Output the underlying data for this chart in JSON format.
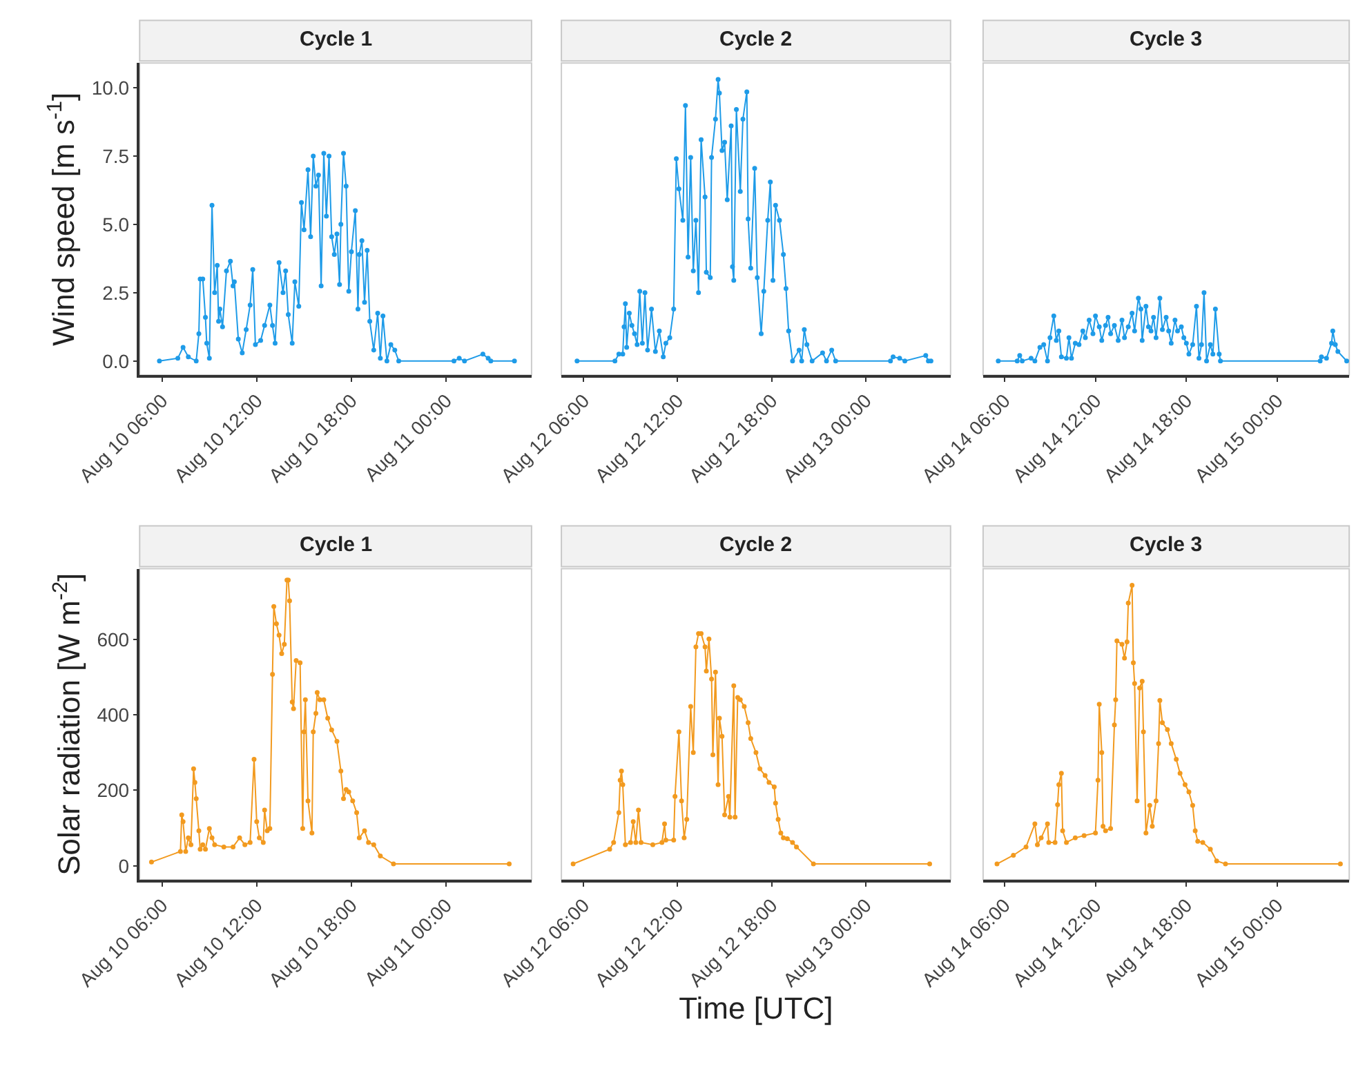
{
  "chart_data": [
    {
      "type": "line",
      "title": "Cycle 1",
      "ylabel": "Wind speed [m s$^{-1}$]",
      "color": "#1e9be8",
      "marker": "circle",
      "x": [
        "--08-10T05:50",
        "--08-10T07:00",
        "--08-10T07:20",
        "--08-10T07:40",
        "--08-10T08:10",
        "--08-10T08:20",
        "--08-10T08:25",
        "--08-10T08:35",
        "--08-10T08:45",
        "--08-10T08:50",
        "--08-10T09:00",
        "--08-10T09:10",
        "--08-10T09:20",
        "--08-10T09:30",
        "--08-10T09:35",
        "--08-10T09:40",
        "--08-10T09:50",
        "--08-10T10:05",
        "--08-10T10:20",
        "--08-10T10:30",
        "--08-10T10:35",
        "--08-10T10:50",
        "--08-10T11:05",
        "--08-10T11:20",
        "--08-10T11:35",
        "--08-10T11:45",
        "--08-10T11:55",
        "--08-10T12:15",
        "--08-10T12:30",
        "--08-10T12:50",
        "--08-10T13:00",
        "--08-10T13:10",
        "--08-10T13:25",
        "--08-10T13:40",
        "--08-10T13:50",
        "--08-10T14:00",
        "--08-10T14:15",
        "--08-10T14:25",
        "--08-10T14:40",
        "--08-10T14:50",
        "--08-10T15:00",
        "--08-10T15:15",
        "--08-10T15:25",
        "--08-10T15:35",
        "--08-10T15:45",
        "--08-10T15:55",
        "--08-10T16:05",
        "--08-10T16:15",
        "--08-10T16:25",
        "--08-10T16:35",
        "--08-10T16:45",
        "--08-10T16:55",
        "--08-10T17:05",
        "--08-10T17:15",
        "--08-10T17:20",
        "--08-10T17:30",
        "--08-10T17:40",
        "--08-10T17:50",
        "--08-10T18:00",
        "--08-10T18:15",
        "--08-10T18:25",
        "--08-10T18:30",
        "--08-10T18:40",
        "--08-10T18:50",
        "--08-10T19:00",
        "--08-10T19:10",
        "--08-10T19:25",
        "--08-10T19:40",
        "--08-10T19:50",
        "--08-10T20:00",
        "--08-10T20:15",
        "--08-10T20:30",
        "--08-10T20:45",
        "--08-10T21:00",
        "--08-11T00:30",
        "--08-11T00:50",
        "--08-11T01:10",
        "--08-11T02:20",
        "--08-11T02:40",
        "--08-11T02:50",
        "--08-11T04:20"
      ],
      "values": [
        0,
        0.1,
        0.5,
        0.15,
        0,
        1.0,
        3.0,
        3.0,
        1.6,
        0.65,
        0.1,
        5.7,
        2.5,
        3.5,
        1.45,
        1.9,
        1.25,
        3.3,
        3.65,
        2.75,
        2.9,
        0.8,
        0.3,
        1.15,
        2.05,
        3.35,
        0.6,
        0.75,
        1.3,
        2.05,
        1.3,
        0.65,
        3.6,
        2.5,
        3.3,
        1.7,
        0.65,
        2.9,
        2.0,
        5.8,
        4.8,
        7.0,
        4.55,
        7.5,
        6.4,
        6.8,
        2.75,
        7.6,
        5.3,
        7.5,
        4.55,
        3.9,
        4.65,
        2.8,
        5.0,
        7.6,
        6.4,
        2.55,
        4.0,
        5.5,
        1.9,
        3.9,
        4.4,
        2.15,
        4.05,
        1.45,
        0.4,
        1.75,
        0.1,
        1.65,
        0,
        0.6,
        0.4,
        0,
        0,
        0.1,
        0,
        0.25,
        0.1,
        0,
        0
      ],
      "xlim": [
        "--08-10T04:35",
        "--08-11T05:25"
      ],
      "xticks": [
        {
          "value": "--08-10T06:00",
          "label": "Aug 10 06:00"
        },
        {
          "value": "--08-10T12:00",
          "label": "Aug 10 12:00"
        },
        {
          "value": "--08-10T18:00",
          "label": "Aug 10 18:00"
        },
        {
          "value": "--08-11T00:00",
          "label": "Aug 11 00:00"
        }
      ],
      "ylim": [
        -0.52,
        10.9
      ],
      "yticks": [
        {
          "value": 0,
          "label": "0.0"
        },
        {
          "value": 2.5,
          "label": "2.5"
        },
        {
          "value": 5,
          "label": "5.0"
        },
        {
          "value": 7.5,
          "label": "7.5"
        },
        {
          "value": 10,
          "label": "10.0"
        }
      ]
    },
    {
      "type": "line",
      "title": "Cycle 2",
      "color": "#1e9be8",
      "marker": "circle",
      "tick_labels": "x",
      "x": [
        "--08-12T05:35",
        "--08-12T08:00",
        "--08-12T08:15",
        "--08-12T08:30",
        "--08-12T08:35",
        "--08-12T08:40",
        "--08-12T08:45",
        "--08-12T08:55",
        "--08-12T09:05",
        "--08-12T09:15",
        "--08-12T09:25",
        "--08-12T09:35",
        "--08-12T09:45",
        "--08-12T09:55",
        "--08-12T10:05",
        "--08-12T10:20",
        "--08-12T10:35",
        "--08-12T10:50",
        "--08-12T11:05",
        "--08-12T11:15",
        "--08-12T11:30",
        "--08-12T11:45",
        "--08-12T11:55",
        "--08-12T12:05",
        "--08-12T12:20",
        "--08-12T12:30",
        "--08-12T12:40",
        "--08-12T12:50",
        "--08-12T13:00",
        "--08-12T13:10",
        "--08-12T13:20",
        "--08-12T13:30",
        "--08-12T13:45",
        "--08-12T13:50",
        "--08-12T14:05",
        "--08-12T14:10",
        "--08-12T14:25",
        "--08-12T14:35",
        "--08-12T14:40",
        "--08-12T14:50",
        "--08-12T15:00",
        "--08-12T15:10",
        "--08-12T15:25",
        "--08-12T15:30",
        "--08-12T15:35",
        "--08-12T15:45",
        "--08-12T16:00",
        "--08-12T16:10",
        "--08-12T16:25",
        "--08-12T16:30",
        "--08-12T16:40",
        "--08-12T16:55",
        "--08-12T17:05",
        "--08-12T17:20",
        "--08-12T17:30",
        "--08-12T17:45",
        "--08-12T17:55",
        "--08-12T18:05",
        "--08-12T18:15",
        "--08-12T18:30",
        "--08-12T18:45",
        "--08-12T18:55",
        "--08-12T19:05",
        "--08-12T19:20",
        "--08-12T19:45",
        "--08-12T19:55",
        "--08-12T20:05",
        "--08-12T20:15",
        "--08-12T20:35",
        "--08-12T21:15",
        "--08-12T21:30",
        "--08-12T21:50",
        "--08-12T22:05",
        "--08-13T01:35",
        "--08-13T01:45",
        "--08-13T02:10",
        "--08-13T02:30",
        "--08-13T03:50",
        "--08-13T04:00",
        "--08-13T04:10"
      ],
      "values": [
        0,
        0,
        0.25,
        0.25,
        1.25,
        2.1,
        0.5,
        1.75,
        1.3,
        1.0,
        0.6,
        2.55,
        0.65,
        2.5,
        0.4,
        1.9,
        0.35,
        1.1,
        0.15,
        0.65,
        0.85,
        1.9,
        7.4,
        6.3,
        5.15,
        9.35,
        3.8,
        7.45,
        3.3,
        5.15,
        2.5,
        8.1,
        6.0,
        3.25,
        3.05,
        7.45,
        8.85,
        10.3,
        9.8,
        7.7,
        8.0,
        5.9,
        8.6,
        3.45,
        2.95,
        9.2,
        6.2,
        8.85,
        9.85,
        5.2,
        3.4,
        7.05,
        3.05,
        1.0,
        2.55,
        5.15,
        6.55,
        2.95,
        5.7,
        5.15,
        3.9,
        2.65,
        1.1,
        0,
        0.4,
        0,
        1.15,
        0.6,
        0,
        0.3,
        0,
        0.4,
        0,
        0,
        0.15,
        0.1,
        0,
        0.2,
        0,
        0
      ],
      "xlim": [
        "--08-12T04:35",
        "--08-13T05:25"
      ],
      "xticks": [
        {
          "value": "--08-12T06:00",
          "label": "Aug 12 06:00"
        },
        {
          "value": "--08-12T12:00",
          "label": "Aug 12 12:00"
        },
        {
          "value": "--08-12T18:00",
          "label": "Aug 12 18:00"
        },
        {
          "value": "--08-13T00:00",
          "label": "Aug 13 00:00"
        }
      ],
      "ylim": [
        -0.52,
        10.9
      ]
    },
    {
      "type": "line",
      "title": "Cycle 3",
      "color": "#1e9be8",
      "marker": "circle",
      "tick_labels": "x",
      "x": [
        "--08-14T05:35",
        "--08-14T06:50",
        "--08-14T07:00",
        "--08-14T07:10",
        "--08-14T07:45",
        "--08-14T08:00",
        "--08-14T08:20",
        "--08-14T08:35",
        "--08-14T08:50",
        "--08-14T09:00",
        "--08-14T09:15",
        "--08-14T09:25",
        "--08-14T09:35",
        "--08-14T09:45",
        "--08-14T10:05",
        "--08-14T10:15",
        "--08-14T10:25",
        "--08-14T10:40",
        "--08-14T10:55",
        "--08-14T11:10",
        "--08-14T11:20",
        "--08-14T11:35",
        "--08-14T11:50",
        "--08-14T12:00",
        "--08-14T12:15",
        "--08-14T12:25",
        "--08-14T12:40",
        "--08-14T12:50",
        "--08-14T13:00",
        "--08-14T13:15",
        "--08-14T13:30",
        "--08-14T13:45",
        "--08-14T13:55",
        "--08-14T14:10",
        "--08-14T14:25",
        "--08-14T14:35",
        "--08-14T14:50",
        "--08-14T15:00",
        "--08-14T15:05",
        "--08-14T15:20",
        "--08-14T15:30",
        "--08-14T15:40",
        "--08-14T15:50",
        "--08-14T16:00",
        "--08-14T16:15",
        "--08-14T16:25",
        "--08-14T16:40",
        "--08-14T16:50",
        "--08-14T17:00",
        "--08-14T17:15",
        "--08-14T17:25",
        "--08-14T17:40",
        "--08-14T17:50",
        "--08-14T18:00",
        "--08-14T18:10",
        "--08-14T18:25",
        "--08-14T18:40",
        "--08-14T18:50",
        "--08-14T19:00",
        "--08-14T19:10",
        "--08-14T19:20",
        "--08-14T19:35",
        "--08-14T19:45",
        "--08-14T19:55",
        "--08-14T20:10",
        "--08-14T20:15",
        "--08-15T02:50",
        "--08-15T02:55",
        "--08-15T03:15",
        "--08-15T03:35",
        "--08-15T03:40",
        "--08-15T03:50",
        "--08-15T04:00",
        "--08-15T04:35"
      ],
      "values": [
        0,
        0,
        0.2,
        0,
        0.1,
        0,
        0.5,
        0.6,
        0,
        0.85,
        1.65,
        0.75,
        1.1,
        0.15,
        0.1,
        0.85,
        0.1,
        0.65,
        0.6,
        1.1,
        0.85,
        1.5,
        1.0,
        1.65,
        1.25,
        0.75,
        1.3,
        1.6,
        1.0,
        1.3,
        0.75,
        1.5,
        0.85,
        1.25,
        1.75,
        1.1,
        2.3,
        1.9,
        0.75,
        2.0,
        1.25,
        1.1,
        1.6,
        0.85,
        2.3,
        1.15,
        1.6,
        1.1,
        0.65,
        1.5,
        1.1,
        1.25,
        0.85,
        0.65,
        0.25,
        0.6,
        2.0,
        0.1,
        0.6,
        2.5,
        0,
        0.6,
        0.25,
        1.9,
        0.25,
        0,
        0,
        0.15,
        0.1,
        0.65,
        1.1,
        0.6,
        0.35,
        0
      ],
      "xlim": [
        "--08-14T04:35",
        "--08-15T04:45"
      ],
      "xticks": [
        {
          "value": "--08-14T06:00",
          "label": "Aug 14 06:00"
        },
        {
          "value": "--08-14T12:00",
          "label": "Aug 14 12:00"
        },
        {
          "value": "--08-14T18:00",
          "label": "Aug 14 18:00"
        },
        {
          "value": "--08-15T00:00",
          "label": "Aug 15 00:00"
        }
      ],
      "ylim": [
        -0.52,
        10.9
      ]
    },
    {
      "type": "line",
      "title": "Cycle 1",
      "ylabel": "Solar radiation [W m$^{-2}$]",
      "color": "#f29a1f",
      "marker": "circle",
      "x": [
        "--08-10T05:20",
        "--08-10T07:10",
        "--08-10T07:15",
        "--08-10T07:20",
        "--08-10T07:30",
        "--08-10T07:40",
        "--08-10T07:50",
        "--08-10T08:00",
        "--08-10T08:05",
        "--08-10T08:10",
        "--08-10T08:20",
        "--08-10T08:25",
        "--08-10T08:35",
        "--08-10T08:45",
        "--08-10T09:00",
        "--08-10T09:10",
        "--08-10T09:20",
        "--08-10T09:55",
        "--08-10T10:30",
        "--08-10T10:55",
        "--08-10T11:15",
        "--08-10T11:35",
        "--08-10T11:50",
        "--08-10T12:00",
        "--08-10T12:10",
        "--08-10T12:25",
        "--08-10T12:30",
        "--08-10T12:40",
        "--08-10T12:50",
        "--08-10T13:00",
        "--08-10T13:05",
        "--08-10T13:15",
        "--08-10T13:25",
        "--08-10T13:35",
        "--08-10T13:45",
        "--08-10T13:55",
        "--08-10T14:00",
        "--08-10T14:05",
        "--08-10T14:15",
        "--08-10T14:20",
        "--08-10T14:30",
        "--08-10T14:45",
        "--08-10T14:55",
        "--08-10T15:00",
        "--08-10T15:05",
        "--08-10T15:15",
        "--08-10T15:30",
        "--08-10T15:35",
        "--08-10T15:45",
        "--08-10T15:50",
        "--08-10T16:00",
        "--08-10T16:15",
        "--08-10T16:30",
        "--08-10T16:45",
        "--08-10T17:05",
        "--08-10T17:20",
        "--08-10T17:30",
        "--08-10T17:40",
        "--08-10T17:50",
        "--08-10T18:05",
        "--08-10T18:20",
        "--08-10T18:30",
        "--08-10T18:50",
        "--08-10T19:05",
        "--08-10T19:25",
        "--08-10T19:50",
        "--08-10T20:40",
        "--08-11T04:00"
      ],
      "values": [
        10,
        38,
        135,
        117,
        38,
        74,
        56,
        257,
        221,
        178,
        93,
        44,
        56,
        44,
        99,
        74,
        56,
        50,
        50,
        74,
        56,
        62,
        282,
        117,
        74,
        62,
        148,
        93,
        99,
        507,
        687,
        641,
        611,
        562,
        587,
        757,
        757,
        702,
        434,
        416,
        544,
        538,
        99,
        355,
        440,
        172,
        87,
        355,
        404,
        459,
        440,
        440,
        391,
        360,
        330,
        251,
        178,
        202,
        196,
        172,
        141,
        74,
        93,
        62,
        56,
        26,
        5,
        5
      ],
      "xlim": [
        "--08-10T04:35",
        "--08-11T05:25"
      ],
      "xticks": [
        {
          "value": "--08-10T06:00",
          "label": "Aug 10 06:00"
        },
        {
          "value": "--08-10T12:00",
          "label": "Aug 10 12:00"
        },
        {
          "value": "--08-10T18:00",
          "label": "Aug 10 18:00"
        },
        {
          "value": "--08-11T00:00",
          "label": "Aug 11 00:00"
        }
      ],
      "ylim": [
        -37,
        787
      ],
      "yticks": [
        0,
        200,
        400,
        600
      ]
    },
    {
      "type": "line",
      "title": "Cycle 2",
      "xlabel": "Time [UTC]",
      "color": "#f29a1f",
      "marker": "circle",
      "tick_labels": "x",
      "x": [
        "--08-12T05:20",
        "--08-12T07:40",
        "--08-12T07:55",
        "--08-12T08:15",
        "--08-12T08:20",
        "--08-12T08:25",
        "--08-12T08:30",
        "--08-12T08:40",
        "--08-12T09:00",
        "--08-12T09:10",
        "--08-12T09:20",
        "--08-12T09:30",
        "--08-12T09:40",
        "--08-12T10:25",
        "--08-12T11:00",
        "--08-12T11:10",
        "--08-12T11:15",
        "--08-12T11:45",
        "--08-12T11:50",
        "--08-12T12:05",
        "--08-12T12:15",
        "--08-12T12:25",
        "--08-12T12:35",
        "--08-12T12:50",
        "--08-12T13:00",
        "--08-12T13:10",
        "--08-12T13:20",
        "--08-12T13:30",
        "--08-12T13:45",
        "--08-12T13:50",
        "--08-12T14:00",
        "--08-12T14:10",
        "--08-12T14:15",
        "--08-12T14:25",
        "--08-12T14:35",
        "--08-12T14:40",
        "--08-12T14:50",
        "--08-12T15:00",
        "--08-12T15:15",
        "--08-12T15:20",
        "--08-12T15:35",
        "--08-12T15:40",
        "--08-12T15:50",
        "--08-12T16:00",
        "--08-12T16:15",
        "--08-12T16:30",
        "--08-12T16:40",
        "--08-12T17:00",
        "--08-12T17:15",
        "--08-12T17:35",
        "--08-12T17:50",
        "--08-12T18:10",
        "--08-12T18:15",
        "--08-12T18:25",
        "--08-12T18:35",
        "--08-12T18:45",
        "--08-12T19:00",
        "--08-12T19:20",
        "--08-12T19:35",
        "--08-12T20:40",
        "--08-13T04:05"
      ],
      "values": [
        5,
        44,
        62,
        141,
        227,
        251,
        215,
        56,
        62,
        117,
        62,
        148,
        62,
        56,
        62,
        111,
        68,
        68,
        184,
        355,
        172,
        74,
        123,
        422,
        300,
        580,
        615,
        615,
        580,
        516,
        601,
        495,
        294,
        513,
        215,
        391,
        343,
        135,
        184,
        129,
        477,
        129,
        446,
        440,
        422,
        379,
        337,
        300,
        257,
        239,
        221,
        209,
        166,
        123,
        87,
        74,
        72,
        62,
        50,
        5,
        5
      ],
      "xlim": [
        "--08-12T04:35",
        "--08-13T05:25"
      ],
      "xticks": [
        {
          "value": "--08-12T06:00",
          "label": "Aug 12 06:00"
        },
        {
          "value": "--08-12T12:00",
          "label": "Aug 12 12:00"
        },
        {
          "value": "--08-12T18:00",
          "label": "Aug 12 18:00"
        },
        {
          "value": "--08-13T00:00",
          "label": "Aug 13 00:00"
        }
      ],
      "ylim": [
        -37,
        787
      ]
    },
    {
      "type": "line",
      "title": "Cycle 3",
      "color": "#f29a1f",
      "marker": "circle",
      "tick_labels": "x",
      "x": [
        "--08-14T05:30",
        "--08-14T06:35",
        "--08-14T07:25",
        "--08-14T08:00",
        "--08-14T08:10",
        "--08-14T08:25",
        "--08-14T08:50",
        "--08-14T08:55",
        "--08-14T09:20",
        "--08-14T09:30",
        "--08-14T09:35",
        "--08-14T09:45",
        "--08-14T09:50",
        "--08-14T10:05",
        "--08-14T10:40",
        "--08-14T11:15",
        "--08-14T12:00",
        "--08-14T12:10",
        "--08-14T12:15",
        "--08-14T12:25",
        "--08-14T12:30",
        "--08-14T12:40",
        "--08-14T13:00",
        "--08-14T13:15",
        "--08-14T13:20",
        "--08-14T13:25",
        "--08-14T13:45",
        "--08-14T13:55",
        "--08-14T14:05",
        "--08-14T14:10",
        "--08-14T14:25",
        "--08-14T14:30",
        "--08-14T14:35",
        "--08-14T14:45",
        "--08-14T14:55",
        "--08-14T15:05",
        "--08-14T15:10",
        "--08-14T15:20",
        "--08-14T15:35",
        "--08-14T15:45",
        "--08-14T16:00",
        "--08-14T16:10",
        "--08-14T16:15",
        "--08-14T16:25",
        "--08-14T16:45",
        "--08-14T17:00",
        "--08-14T17:20",
        "--08-14T17:35",
        "--08-14T17:55",
        "--08-14T18:10",
        "--08-14T18:25",
        "--08-14T18:35",
        "--08-14T18:45",
        "--08-14T19:05",
        "--08-14T19:35",
        "--08-14T20:00",
        "--08-14T20:35",
        "--08-15T04:10"
      ],
      "values": [
        5,
        28,
        50,
        111,
        56,
        74,
        111,
        62,
        62,
        162,
        215,
        245,
        93,
        62,
        74,
        80,
        87,
        227,
        428,
        300,
        105,
        93,
        99,
        373,
        440,
        596,
        587,
        550,
        593,
        696,
        743,
        538,
        483,
        172,
        471,
        489,
        355,
        87,
        160,
        105,
        172,
        324,
        438,
        379,
        361,
        324,
        282,
        245,
        215,
        196,
        160,
        93,
        65,
        62,
        44,
        13,
        5,
        5
      ],
      "xlim": [
        "--08-14T04:35",
        "--08-15T04:45"
      ],
      "xticks": [
        {
          "value": "--08-14T06:00",
          "label": "Aug 14 06:00"
        },
        {
          "value": "--08-14T12:00",
          "label": "Aug 14 12:00"
        },
        {
          "value": "--08-14T18:00",
          "label": "Aug 14 18:00"
        },
        {
          "value": "--08-15T00:00",
          "label": "Aug 15 00:00"
        }
      ],
      "ylim": [
        -37,
        787
      ]
    }
  ]
}
